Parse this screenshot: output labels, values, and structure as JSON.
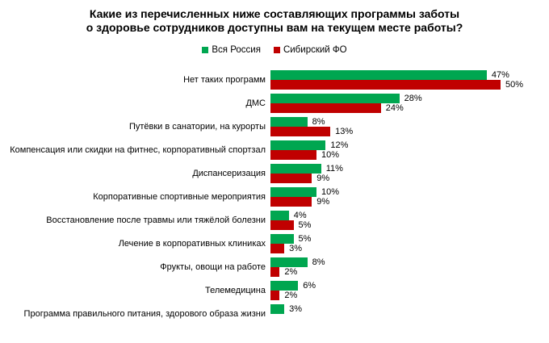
{
  "title": {
    "line1": "Какие из перечисленных ниже составляющих программы заботы",
    "line2": "о здоровье сотрудников доступны вам на текущем месте работы?"
  },
  "legend": [
    {
      "label": "Вся Россия",
      "color": "#00A650"
    },
    {
      "label": "Сибирский ФО",
      "color": "#C00000"
    }
  ],
  "chart_data": {
    "type": "bar",
    "orientation": "horizontal",
    "title": "Какие из перечисленных ниже составляющих программы заботы о здоровье сотрудников доступны вам на текущем месте работы?",
    "value_suffix": "%",
    "xlim": [
      0,
      55
    ],
    "grid": false,
    "legend_position": "top-center",
    "categories": [
      "Нет таких программ",
      "ДМС",
      "Путёвки в санатории, на курорты",
      "Компенсация или скидки на фитнес, корпоративный спортзал",
      "Диспансеризация",
      "Корпоративные спортивные мероприятия",
      "Восстановление после травмы или тяжёлой болезни",
      "Лечение в корпоративных клиниках",
      "Фрукты, овощи на работе",
      "Телемедицина",
      "Программа правильного питания, здорового образа жизни"
    ],
    "series": [
      {
        "name": "Вся Россия",
        "key": "all-russia",
        "color": "#00A650",
        "values": [
          47,
          28,
          8,
          12,
          11,
          10,
          4,
          5,
          8,
          6,
          3
        ]
      },
      {
        "name": "Сибирский ФО",
        "key": "siberian-fd",
        "color": "#C00000",
        "values": [
          50,
          24,
          13,
          10,
          9,
          9,
          5,
          3,
          2,
          2,
          0
        ]
      }
    ]
  }
}
